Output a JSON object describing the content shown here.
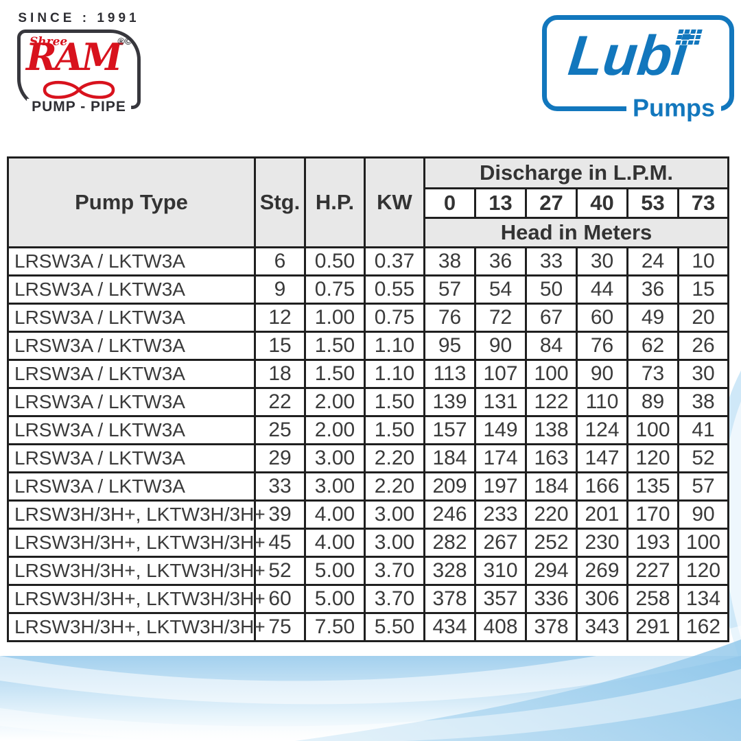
{
  "branding": {
    "ram": {
      "since_label": "SINCE : 1991",
      "shree": "Shree",
      "name": "RAM",
      "reg_marks": "®©",
      "tagline": "PUMP - PIPE",
      "accent_color": "#d8121d",
      "frame_color": "#37373d"
    },
    "lubi": {
      "name": "Lubi",
      "tagline": "Pumps",
      "brand_color": "#1277bd"
    }
  },
  "table": {
    "header": {
      "pump_type": "Pump Type",
      "stg": "Stg.",
      "hp": "H.P.",
      "kw": "KW",
      "discharge_title": "Discharge in L.P.M.",
      "head_title": "Head in Meters",
      "discharge_values": [
        "0",
        "13",
        "27",
        "40",
        "53",
        "73"
      ]
    },
    "rows": [
      {
        "pump_type": "LRSW3A / LKTW3A",
        "stg": "6",
        "hp": "0.50",
        "kw": "0.37",
        "heads": [
          "38",
          "36",
          "33",
          "30",
          "24",
          "10"
        ]
      },
      {
        "pump_type": "LRSW3A / LKTW3A",
        "stg": "9",
        "hp": "0.75",
        "kw": "0.55",
        "heads": [
          "57",
          "54",
          "50",
          "44",
          "36",
          "15"
        ]
      },
      {
        "pump_type": "LRSW3A / LKTW3A",
        "stg": "12",
        "hp": "1.00",
        "kw": "0.75",
        "heads": [
          "76",
          "72",
          "67",
          "60",
          "49",
          "20"
        ]
      },
      {
        "pump_type": "LRSW3A / LKTW3A",
        "stg": "15",
        "hp": "1.50",
        "kw": "1.10",
        "heads": [
          "95",
          "90",
          "84",
          "76",
          "62",
          "26"
        ]
      },
      {
        "pump_type": "LRSW3A / LKTW3A",
        "stg": "18",
        "hp": "1.50",
        "kw": "1.10",
        "heads": [
          "113",
          "107",
          "100",
          "90",
          "73",
          "30"
        ]
      },
      {
        "pump_type": "LRSW3A / LKTW3A",
        "stg": "22",
        "hp": "2.00",
        "kw": "1.50",
        "heads": [
          "139",
          "131",
          "122",
          "110",
          "89",
          "38"
        ]
      },
      {
        "pump_type": "LRSW3A / LKTW3A",
        "stg": "25",
        "hp": "2.00",
        "kw": "1.50",
        "heads": [
          "157",
          "149",
          "138",
          "124",
          "100",
          "41"
        ]
      },
      {
        "pump_type": "LRSW3A / LKTW3A",
        "stg": "29",
        "hp": "3.00",
        "kw": "2.20",
        "heads": [
          "184",
          "174",
          "163",
          "147",
          "120",
          "52"
        ]
      },
      {
        "pump_type": "LRSW3A / LKTW3A",
        "stg": "33",
        "hp": "3.00",
        "kw": "2.20",
        "heads": [
          "209",
          "197",
          "184",
          "166",
          "135",
          "57"
        ]
      },
      {
        "pump_type": "LRSW3H/3H+, LKTW3H/3H+",
        "stg": "39",
        "hp": "4.00",
        "kw": "3.00",
        "heads": [
          "246",
          "233",
          "220",
          "201",
          "170",
          "90"
        ]
      },
      {
        "pump_type": "LRSW3H/3H+, LKTW3H/3H+",
        "stg": "45",
        "hp": "4.00",
        "kw": "3.00",
        "heads": [
          "282",
          "267",
          "252",
          "230",
          "193",
          "100"
        ]
      },
      {
        "pump_type": "LRSW3H/3H+, LKTW3H/3H+",
        "stg": "52",
        "hp": "5.00",
        "kw": "3.70",
        "heads": [
          "328",
          "310",
          "294",
          "269",
          "227",
          "120"
        ]
      },
      {
        "pump_type": "LRSW3H/3H+, LKTW3H/3H+",
        "stg": "60",
        "hp": "5.00",
        "kw": "3.70",
        "heads": [
          "378",
          "357",
          "336",
          "306",
          "258",
          "134"
        ]
      },
      {
        "pump_type": "LRSW3H/3H+, LKTW3H/3H+",
        "stg": "75",
        "hp": "7.50",
        "kw": "5.50",
        "heads": [
          "434",
          "408",
          "378",
          "343",
          "291",
          "162"
        ]
      }
    ]
  },
  "theme": {
    "header_bg": "#e8e8e8",
    "grid_color": "#1f1f1f",
    "text_color": "#3a3a3a",
    "wave_blue": "#a3d0ee",
    "wave_deep": "#8ec6ea",
    "wave_light": "#eef7fd"
  }
}
